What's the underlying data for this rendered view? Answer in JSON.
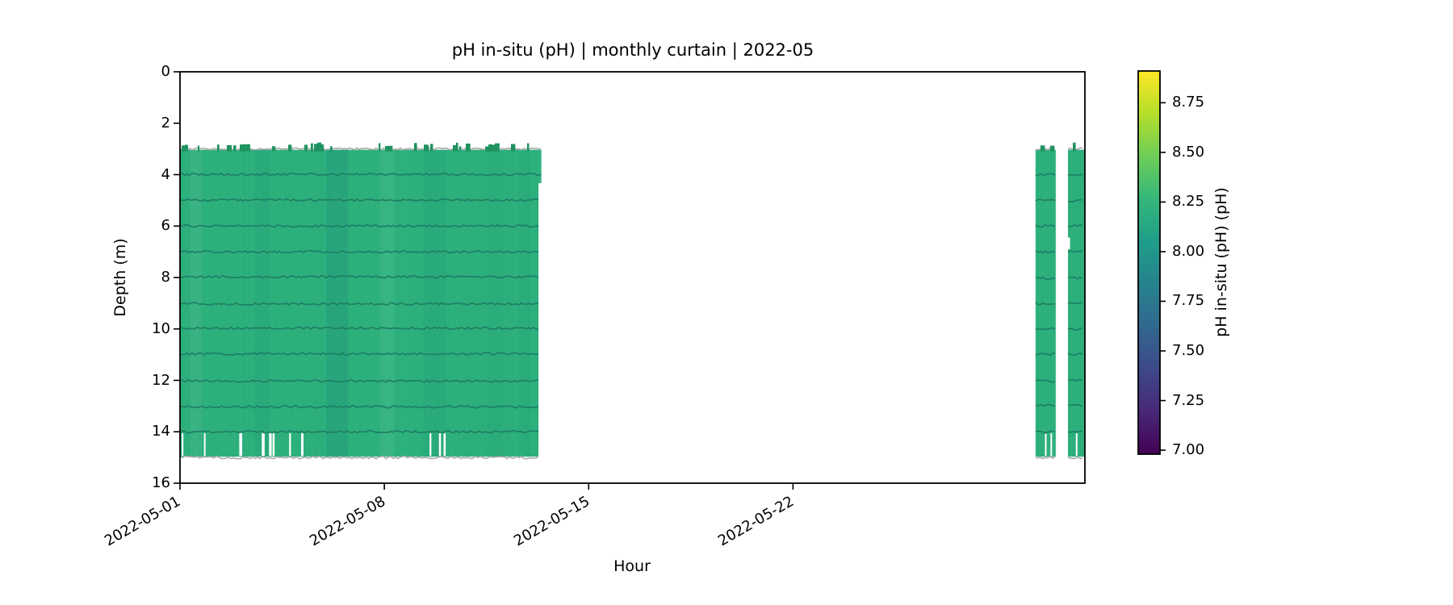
{
  "figure": {
    "background": "#ffffff"
  },
  "chart_data": {
    "type": "heatmap",
    "subtype": "time-depth curtain (pcolormesh)",
    "title": "pH in-situ (pH) | monthly curtain | 2022-05",
    "xlabel": "Hour",
    "ylabel": "Depth (m)",
    "grid": false,
    "legend": "none (colorbar on right)",
    "x_axis": {
      "start_date": "2022-05-01",
      "span_days": 31,
      "tick_labels": [
        "2022-05-01",
        "2022-05-08",
        "2022-05-15",
        "2022-05-22"
      ],
      "tick_days": [
        0,
        7,
        14,
        21
      ],
      "tick_rotation_deg": 30
    },
    "y_axis": {
      "tick_labels": [
        "0",
        "2",
        "4",
        "6",
        "8",
        "10",
        "12",
        "14",
        "16"
      ],
      "tick_values": [
        0,
        2,
        4,
        6,
        8,
        10,
        12,
        14,
        16
      ],
      "lim": [
        0,
        16
      ],
      "inverted": true,
      "unit": "m"
    },
    "colorbar": {
      "label": "pH in-situ (pH) (pH)",
      "tick_labels": [
        "8.75",
        "8.50",
        "8.25",
        "8.00",
        "7.75",
        "7.50",
        "7.25",
        "7.00"
      ],
      "tick_values": [
        8.75,
        8.5,
        8.25,
        8.0,
        7.75,
        7.5,
        7.25,
        7.0
      ],
      "vmin": 6.98,
      "vmax": 8.91,
      "colormap": "viridis",
      "viridis_stops": [
        "#440154",
        "#482878",
        "#3e4989",
        "#31688e",
        "#26828e",
        "#1f9e89",
        "#35b779",
        "#6ece58",
        "#b5de2b",
        "#fde725"
      ]
    },
    "curtain": {
      "description": "Near-uniform pH ~8.2 curtain from 3 m to 15 m depth with darker sensor traces at every integer depth; data present May 1 - May 13 and two short strips May 30 - May 31; white gaps (missing data) between 14 m and 15 m.",
      "depth_top_m": 3.0,
      "depth_bottom_m": 15.0,
      "base_ph": 8.22,
      "sensor_trace_ph": 8.05,
      "base_color": "#2eb27c",
      "sensor_line_color": "#1e7f66",
      "boundary_color": "#a9a9a9",
      "surface_mark_color": "#1e9360",
      "sensor_depths_m": [
        4,
        5,
        6,
        7,
        8,
        9,
        10,
        11,
        12,
        13,
        14
      ],
      "segments_days": [
        [
          0,
          12.28
        ],
        [
          29.31,
          30.0
        ],
        [
          30.42,
          31.0
        ]
      ],
      "overhang": {
        "d0": 12.28,
        "d1": 12.38,
        "m0": 3.0,
        "m1": 4.3
      },
      "gap_band_m": [
        14.06,
        14.94
      ],
      "gaps": [
        {
          "d": 0.06,
          "w": 0.05
        },
        {
          "d": 0.82,
          "w": 0.05
        },
        {
          "d": 2.03,
          "w": 0.1
        },
        {
          "d": 2.8,
          "w": 0.1
        },
        {
          "d": 3.05,
          "w": 0.09
        },
        {
          "d": 3.17,
          "w": 0.07
        },
        {
          "d": 3.74,
          "w": 0.06
        },
        {
          "d": 4.15,
          "w": 0.08
        },
        {
          "d": 8.55,
          "w": 0.06
        },
        {
          "d": 8.87,
          "w": 0.07
        },
        {
          "d": 9.03,
          "w": 0.07
        },
        {
          "d": 29.63,
          "w": 0.05
        },
        {
          "d": 29.82,
          "w": 0.04
        },
        {
          "d": 30.69,
          "w": 0.05
        }
      ],
      "notches": [
        {
          "d0": 30.42,
          "d1": 30.49,
          "m0": 6.45,
          "m1": 6.9
        }
      ],
      "shade_bands": [
        {
          "d0": 5.02,
          "d1": 5.75,
          "color": "rgba(16,110,125,0.16)"
        },
        {
          "d0": 2.55,
          "d1": 3.1,
          "color": "rgba(16,110,125,0.07)"
        },
        {
          "d0": 8.35,
          "d1": 9.1,
          "color": "rgba(16,110,125,0.07)"
        },
        {
          "d0": 10.55,
          "d1": 11.05,
          "color": "rgba(16,110,125,0.05)"
        },
        {
          "d0": 11.6,
          "d1": 12.0,
          "color": "rgba(16,110,125,0.05)"
        },
        {
          "d0": 0.35,
          "d1": 0.75,
          "color": "rgba(255,255,255,0.06)"
        },
        {
          "d0": 6.85,
          "d1": 7.35,
          "color": "rgba(255,255,255,0.05)"
        }
      ]
    }
  }
}
